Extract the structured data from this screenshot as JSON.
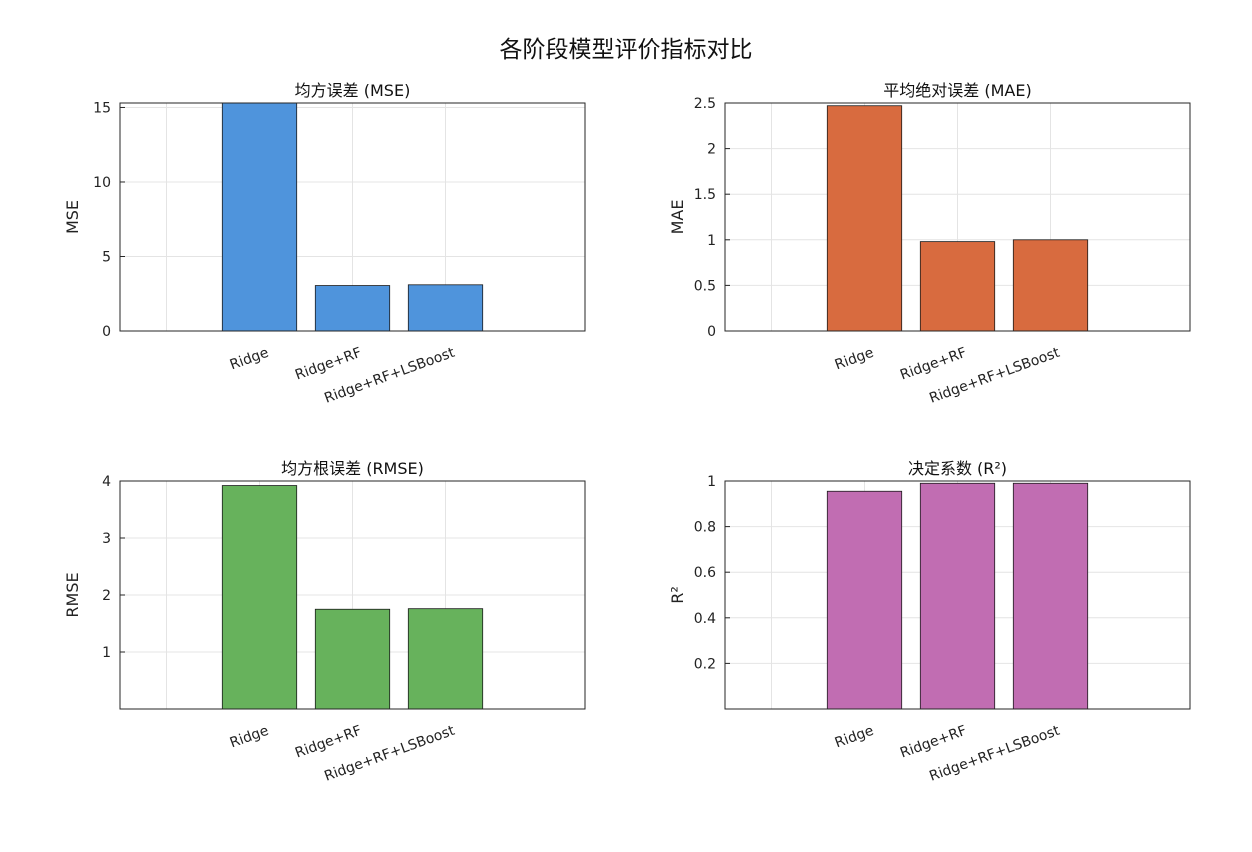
{
  "figure": {
    "title": "各阶段模型评价指标对比"
  },
  "chart_data": [
    {
      "type": "bar",
      "title": "均方误差 (MSE)",
      "ylabel": "MSE",
      "categories": [
        "Ridge",
        "Ridge+RF",
        "Ridge+RF+LSBoost"
      ],
      "values": [
        15.3,
        3.05,
        3.1
      ],
      "ylim": [
        0,
        15.3
      ],
      "yticks": [
        0,
        5,
        10,
        15
      ],
      "ytick_labels": [
        "0",
        "5",
        "10",
        "15"
      ],
      "color": "#4f94dc",
      "grid": true
    },
    {
      "type": "bar",
      "title": "平均绝对误差 (MAE)",
      "ylabel": "MAE",
      "categories": [
        "Ridge",
        "Ridge+RF",
        "Ridge+RF+LSBoost"
      ],
      "values": [
        2.47,
        0.98,
        1.0
      ],
      "ylim": [
        0,
        2.5
      ],
      "yticks": [
        0,
        0.5,
        1,
        1.5,
        2,
        2.5
      ],
      "ytick_labels": [
        "0",
        "0.5",
        "1",
        "1.5",
        "2",
        "2.5"
      ],
      "color": "#d86b3f",
      "grid": true
    },
    {
      "type": "bar",
      "title": "均方根误差 (RMSE)",
      "ylabel": "RMSE",
      "categories": [
        "Ridge",
        "Ridge+RF",
        "Ridge+RF+LSBoost"
      ],
      "values": [
        3.92,
        1.75,
        1.76
      ],
      "ylim": [
        0,
        4
      ],
      "yticks": [
        0,
        1,
        2,
        3,
        4
      ],
      "ytick_labels": [
        "",
        "1",
        "2",
        "3",
        "4"
      ],
      "color": "#67b25c",
      "grid": true
    },
    {
      "type": "bar",
      "title": "决定系数 (R²)",
      "ylabel": "R²",
      "categories": [
        "Ridge",
        "Ridge+RF",
        "Ridge+RF+LSBoost"
      ],
      "values": [
        0.955,
        0.99,
        0.99
      ],
      "ylim": [
        0,
        1
      ],
      "yticks": [
        0,
        0.2,
        0.4,
        0.6,
        0.8,
        1
      ],
      "ytick_labels": [
        "",
        "0.2",
        "0.4",
        "0.6",
        "0.8",
        "1"
      ],
      "color": "#c16db2",
      "grid": true
    }
  ]
}
